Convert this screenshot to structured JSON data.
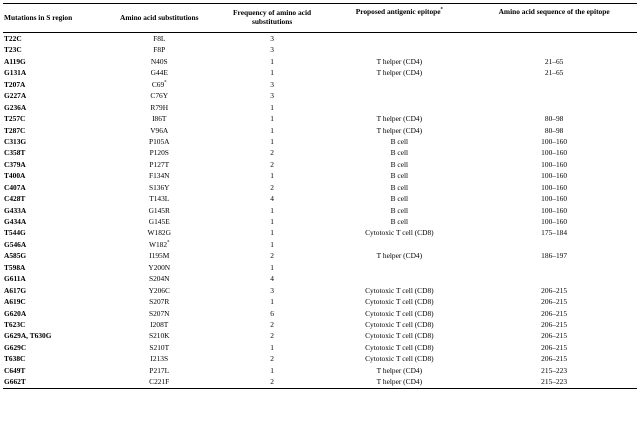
{
  "headers": {
    "mutations": "Mutations in S region",
    "substitutions": "Amino acid substitutions",
    "frequency_line1": "Frequency of amino acid",
    "frequency_line2": "substitutions",
    "epitope": "Proposed antigenic epitope",
    "epitope_mark": "*",
    "sequence": "Amino acid sequence of the epitope"
  },
  "rows": [
    {
      "mutation": "T22C",
      "substitution": "F8L",
      "mark": "",
      "frequency": "3",
      "epitope": "",
      "sequence": ""
    },
    {
      "mutation": "T23C",
      "substitution": "F8P",
      "mark": "",
      "frequency": "3",
      "epitope": "",
      "sequence": ""
    },
    {
      "mutation": "A119G",
      "substitution": "N40S",
      "mark": "",
      "frequency": "1",
      "epitope": "T helper (CD4)",
      "sequence": "21–65"
    },
    {
      "mutation": "G131A",
      "substitution": "G44E",
      "mark": "",
      "frequency": "1",
      "epitope": "T helper (CD4)",
      "sequence": "21–65"
    },
    {
      "mutation": "T207A",
      "substitution": "C69",
      "mark": "*",
      "frequency": "3",
      "epitope": "",
      "sequence": ""
    },
    {
      "mutation": "G227A",
      "substitution": "C76Y",
      "mark": "",
      "frequency": "3",
      "epitope": "",
      "sequence": ""
    },
    {
      "mutation": "G236A",
      "substitution": "R79H",
      "mark": "",
      "frequency": "1",
      "epitope": "",
      "sequence": ""
    },
    {
      "mutation": "T257C",
      "substitution": "I86T",
      "mark": "",
      "frequency": "1",
      "epitope": "T helper (CD4)",
      "sequence": "80–98"
    },
    {
      "mutation": "T287C",
      "substitution": "V96A",
      "mark": "",
      "frequency": "1",
      "epitope": "T helper (CD4)",
      "sequence": "80–98"
    },
    {
      "mutation": "C313G",
      "substitution": "P105A",
      "mark": "",
      "frequency": "1",
      "epitope": "B cell",
      "sequence": "100–160"
    },
    {
      "mutation": "C358T",
      "substitution": "P120S",
      "mark": "",
      "frequency": "2",
      "epitope": "B cell",
      "sequence": "100–160"
    },
    {
      "mutation": "C379A",
      "substitution": "P127T",
      "mark": "",
      "frequency": "2",
      "epitope": "B cell",
      "sequence": "100–160"
    },
    {
      "mutation": "T400A",
      "substitution": "F134N",
      "mark": "",
      "frequency": "1",
      "epitope": "B cell",
      "sequence": "100–160"
    },
    {
      "mutation": "C407A",
      "substitution": "S136Y",
      "mark": "",
      "frequency": "2",
      "epitope": "B cell",
      "sequence": "100–160"
    },
    {
      "mutation": "C428T",
      "substitution": "T143L",
      "mark": "",
      "frequency": "4",
      "epitope": "B cell",
      "sequence": "100–160"
    },
    {
      "mutation": "G433A",
      "substitution": "G145R",
      "mark": "",
      "frequency": "1",
      "epitope": "B cell",
      "sequence": "100–160"
    },
    {
      "mutation": "G434A",
      "substitution": "G145E",
      "mark": "",
      "frequency": "1",
      "epitope": "B cell",
      "sequence": "100–160"
    },
    {
      "mutation": "T544G",
      "substitution": "W182G",
      "mark": "",
      "frequency": "1",
      "epitope": "Cytotoxic T cell (CD8)",
      "sequence": "175–184"
    },
    {
      "mutation": "G546A",
      "substitution": "W182",
      "mark": "*",
      "frequency": "1",
      "epitope": "",
      "sequence": ""
    },
    {
      "mutation": "A585G",
      "substitution": "I195M",
      "mark": "",
      "frequency": "2",
      "epitope": "T helper (CD4)",
      "sequence": "186–197"
    },
    {
      "mutation": "T598A",
      "substitution": "Y200N",
      "mark": "",
      "frequency": "1",
      "epitope": "",
      "sequence": ""
    },
    {
      "mutation": "G611A",
      "substitution": "S204N",
      "mark": "",
      "frequency": "4",
      "epitope": "",
      "sequence": ""
    },
    {
      "mutation": "A617G",
      "substitution": "Y206C",
      "mark": "",
      "frequency": "3",
      "epitope": "Cytotoxic T cell (CD8)",
      "sequence": "206–215"
    },
    {
      "mutation": "A619C",
      "substitution": "S207R",
      "mark": "",
      "frequency": "1",
      "epitope": "Cytotoxic T cell (CD8)",
      "sequence": "206–215"
    },
    {
      "mutation": "G620A",
      "substitution": "S207N",
      "mark": "",
      "frequency": "6",
      "epitope": "Cytotoxic T cell (CD8)",
      "sequence": "206–215"
    },
    {
      "mutation": "T623C",
      "substitution": "I208T",
      "mark": "",
      "frequency": "2",
      "epitope": "Cytotoxic T cell (CD8)",
      "sequence": "206–215"
    },
    {
      "mutation": "G629A, T630G",
      "substitution": "S210K",
      "mark": "",
      "frequency": "2",
      "epitope": "Cytotoxic T cell (CD8)",
      "sequence": "206–215"
    },
    {
      "mutation": "G629C",
      "substitution": "S210T",
      "mark": "",
      "frequency": "1",
      "epitope": "Cytotoxic T cell (CD8)",
      "sequence": "206–215"
    },
    {
      "mutation": "T638C",
      "substitution": "I213S",
      "mark": "",
      "frequency": "2",
      "epitope": "Cytotoxic T cell (CD8)",
      "sequence": "206–215"
    },
    {
      "mutation": "C649T",
      "substitution": "P217L",
      "mark": "",
      "frequency": "1",
      "epitope": "T helper (CD4)",
      "sequence": "215–223"
    },
    {
      "mutation": "G662T",
      "substitution": "C221F",
      "mark": "",
      "frequency": "2",
      "epitope": "T helper (CD4)",
      "sequence": "215–223"
    }
  ]
}
